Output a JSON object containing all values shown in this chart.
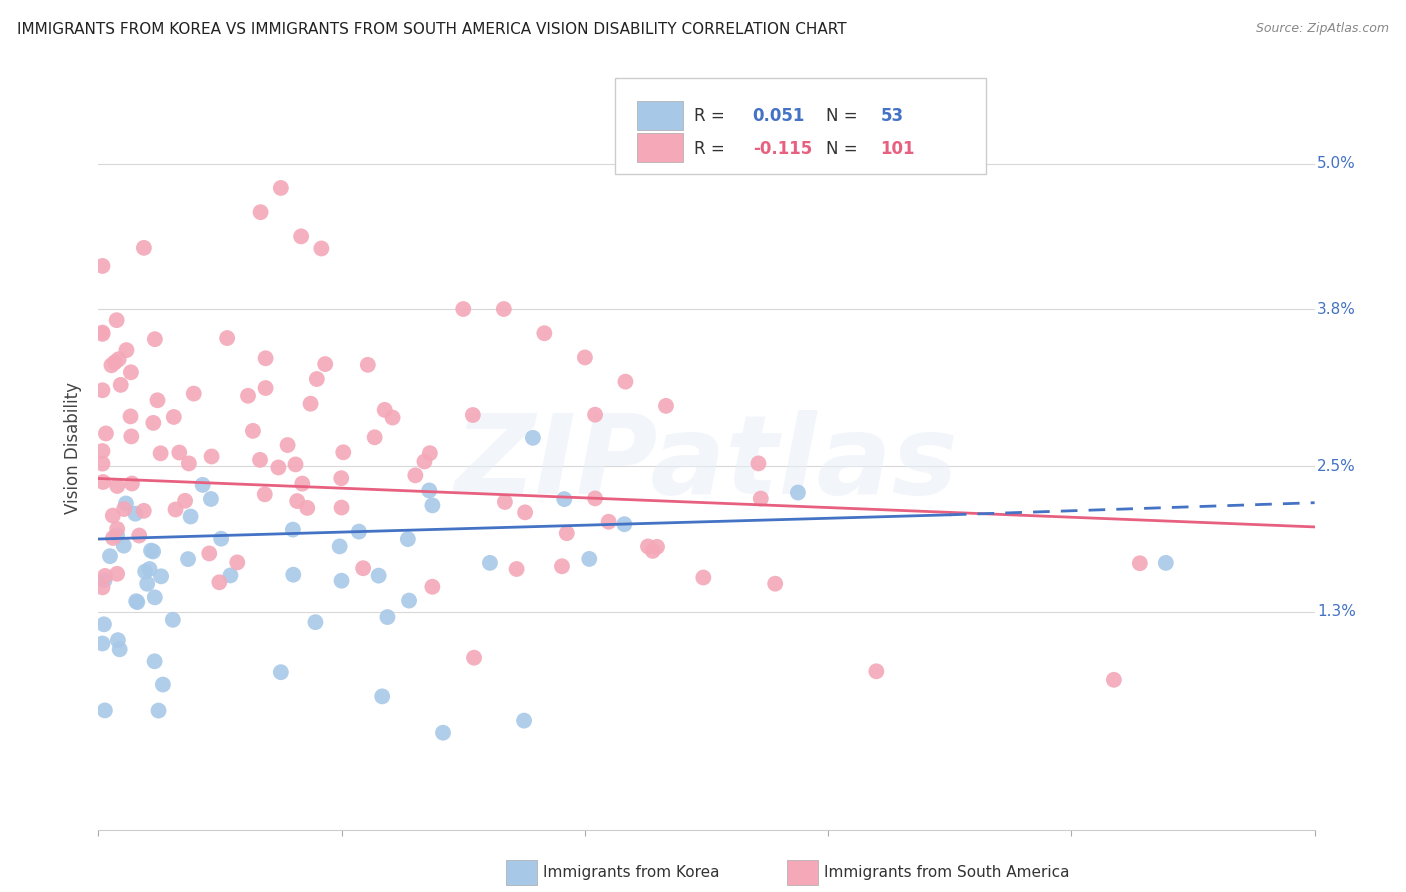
{
  "title": "IMMIGRANTS FROM KOREA VS IMMIGRANTS FROM SOUTH AMERICA VISION DISABILITY CORRELATION CHART",
  "source": "Source: ZipAtlas.com",
  "ylabel": "Vision Disability",
  "ylabel_ticks": [
    "5.0%",
    "3.8%",
    "2.5%",
    "1.3%"
  ],
  "ylabel_vals": [
    0.05,
    0.038,
    0.025,
    0.013
  ],
  "xlim": [
    0.0,
    0.6
  ],
  "ylim": [
    -0.005,
    0.058
  ],
  "korea_R": 0.051,
  "korea_N": 53,
  "sa_R": -0.115,
  "sa_N": 101,
  "korea_color": "#a8c8e8",
  "sa_color": "#f4a8b8",
  "korea_line_color": "#4472c4",
  "sa_line_color": "#e86080",
  "watermark": "ZIPatlas",
  "background_color": "#ffffff",
  "grid_color": "#d8d8d8",
  "tick_color": "#4472c4"
}
